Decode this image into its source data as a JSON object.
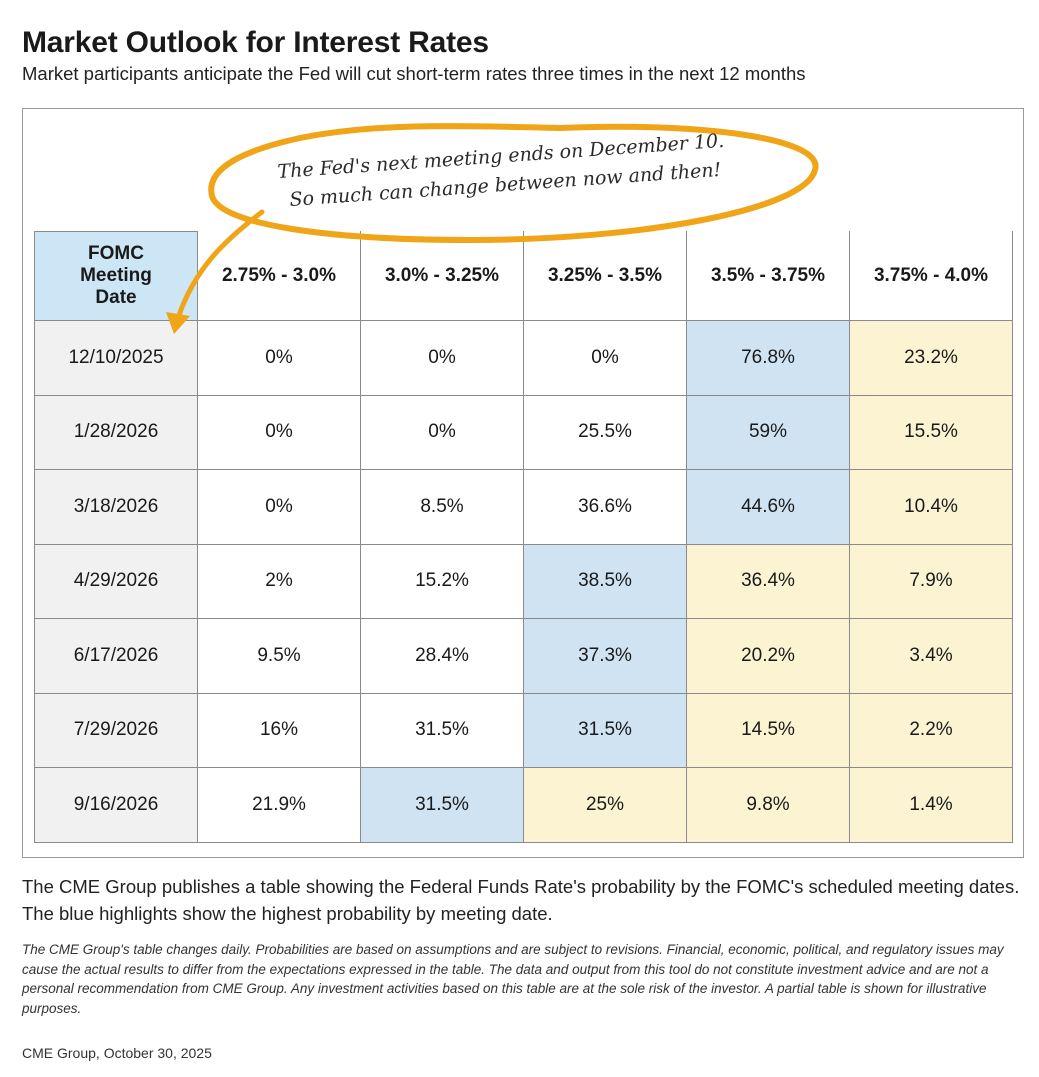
{
  "header": {
    "title": "Market Outlook for Interest Rates",
    "subtitle": "Market participants anticipate the Fed will cut short-term rates three times in the next 12 months"
  },
  "annotation": {
    "line1": "The Fed's next meeting ends on December 10.",
    "line2": "So much can change between now and then!"
  },
  "chart_data": {
    "type": "table",
    "row_header_lines": [
      "FOMC",
      "Meeting",
      "Date"
    ],
    "columns": [
      "2.75% - 3.0%",
      "3.0% - 3.25%",
      "3.25% - 3.5%",
      "3.5% - 3.75%",
      "3.75% - 4.0%"
    ],
    "rows": [
      {
        "date": "12/10/2025",
        "values": [
          "0%",
          "0%",
          "0%",
          "76.8%",
          "23.2%"
        ],
        "highlights": [
          "none",
          "none",
          "none",
          "blue",
          "yellow"
        ]
      },
      {
        "date": "1/28/2026",
        "values": [
          "0%",
          "0%",
          "25.5%",
          "59%",
          "15.5%"
        ],
        "highlights": [
          "none",
          "none",
          "none",
          "blue",
          "yellow"
        ]
      },
      {
        "date": "3/18/2026",
        "values": [
          "0%",
          "8.5%",
          "36.6%",
          "44.6%",
          "10.4%"
        ],
        "highlights": [
          "none",
          "none",
          "none",
          "blue",
          "yellow"
        ]
      },
      {
        "date": "4/29/2026",
        "values": [
          "2%",
          "15.2%",
          "38.5%",
          "36.4%",
          "7.9%"
        ],
        "highlights": [
          "none",
          "none",
          "blue",
          "yellow",
          "yellow"
        ]
      },
      {
        "date": "6/17/2026",
        "values": [
          "9.5%",
          "28.4%",
          "37.3%",
          "20.2%",
          "3.4%"
        ],
        "highlights": [
          "none",
          "none",
          "blue",
          "yellow",
          "yellow"
        ]
      },
      {
        "date": "7/29/2026",
        "values": [
          "16%",
          "31.5%",
          "31.5%",
          "14.5%",
          "2.2%"
        ],
        "highlights": [
          "none",
          "none",
          "blue",
          "yellow",
          "yellow"
        ]
      },
      {
        "date": "9/16/2026",
        "values": [
          "21.9%",
          "31.5%",
          "25%",
          "9.8%",
          "1.4%"
        ],
        "highlights": [
          "none",
          "blue",
          "yellow",
          "yellow",
          "yellow"
        ]
      }
    ]
  },
  "colors": {
    "header_blue": "#cde6f6",
    "highlight_blue": "#cfe3f3",
    "highlight_yellow": "#fbf3d1",
    "date_gray": "#f1f1f1",
    "annotation_orange": "#f0a418"
  },
  "footer": {
    "description": "The CME Group publishes a table showing the Federal Funds Rate's probability by the FOMC's scheduled meeting dates. The blue highlights show the highest probability by meeting date.",
    "disclaimer": "The CME Group's table changes daily. Probabilities are based on assumptions and are subject to revisions. Financial, economic, political, and regulatory issues may cause the actual results to differ from the expectations expressed in the table. The data and output from this tool do not constitute investment advice and are not a personal recommendation from CME Group. Any investment activities based on this table are at the sole risk of the investor. A partial table is shown for illustrative purposes.",
    "source": "CME Group,  October 30, 2025"
  }
}
